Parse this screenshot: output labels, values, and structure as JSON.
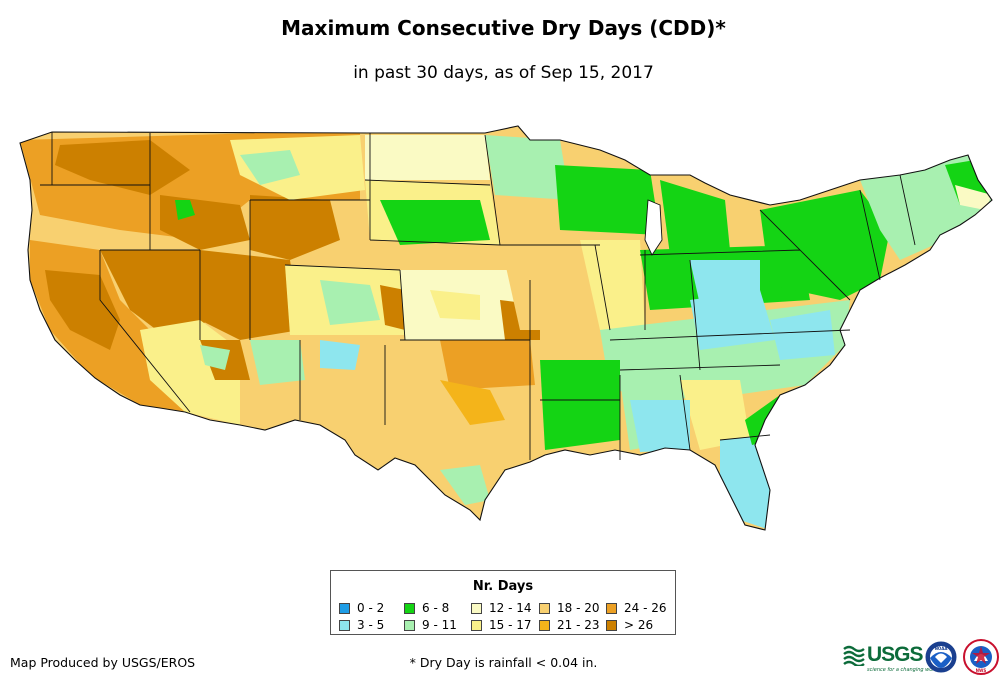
{
  "title": "Maximum Consecutive Dry Days (CDD)*",
  "subtitle": "in past 30 days, as of Sep 15, 2017",
  "legend": {
    "title": "Nr. Days",
    "items": [
      {
        "label": "0 - 2",
        "color": "#1e9de6"
      },
      {
        "label": "3 - 5",
        "color": "#8ee6ee"
      },
      {
        "label": "6 - 8",
        "color": "#14d414"
      },
      {
        "label": "9 - 11",
        "color": "#a8f0b0"
      },
      {
        "label": "12 - 14",
        "color": "#fafac4"
      },
      {
        "label": "15 - 17",
        "color": "#faf08a"
      },
      {
        "label": "18 - 20",
        "color": "#f8d070"
      },
      {
        "label": "21 - 23",
        "color": "#f4b41a"
      },
      {
        "label": "24 - 26",
        "color": "#eca024"
      },
      {
        "label": "> 26",
        "color": "#cc8000"
      }
    ]
  },
  "credit": "Map Produced by USGS/EROS",
  "footnote": "* Dry Day is rainfall < 0.04 in.",
  "logos": {
    "usgs": "USGS",
    "usgs_tagline": "science for a changing world",
    "noaa": "NOAA",
    "nws": "NWS"
  }
}
